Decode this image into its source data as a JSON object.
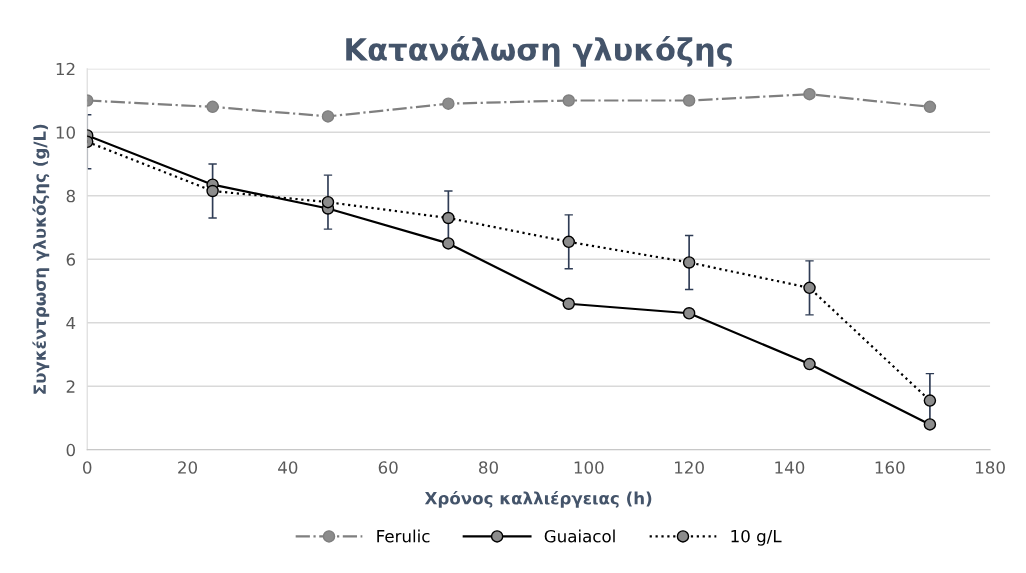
{
  "chart_data": {
    "type": "line",
    "title": "Κατανάλωση γλυκόζης",
    "xlabel": "Χρόνος καλλιέργειας (h)",
    "ylabel": "Συγκέντρωση γλυκόζης (g/L)",
    "x": [
      0,
      25,
      48,
      72,
      96,
      120,
      144,
      168
    ],
    "series": [
      {
        "name": "Ferulic",
        "color": "#7f7f7f",
        "line_style": "dashdot",
        "values": [
          11.0,
          10.8,
          10.5,
          10.9,
          11.0,
          11.0,
          11.2,
          10.8
        ]
      },
      {
        "name": "Guaiacol",
        "color": "#000000",
        "line_style": "solid",
        "values": [
          9.9,
          8.35,
          7.6,
          6.5,
          4.6,
          4.3,
          2.7,
          0.8
        ]
      },
      {
        "name": "10 g/L",
        "color": "#000000",
        "line_style": "dotted",
        "values": [
          9.7,
          8.15,
          7.8,
          7.3,
          6.55,
          5.9,
          5.1,
          1.55
        ],
        "errors": [
          0.85,
          0.85,
          0.85,
          0.85,
          0.85,
          0.85,
          0.85,
          0.85
        ]
      }
    ],
    "marker": "circle",
    "xlim": [
      0,
      180
    ],
    "xticks": [
      0,
      20,
      40,
      60,
      80,
      100,
      120,
      140,
      160,
      180
    ],
    "ylim": [
      0,
      12
    ],
    "yticks": [
      0,
      2,
      4,
      6,
      8,
      10,
      12
    ],
    "grid": "y",
    "legend": "bottom"
  }
}
